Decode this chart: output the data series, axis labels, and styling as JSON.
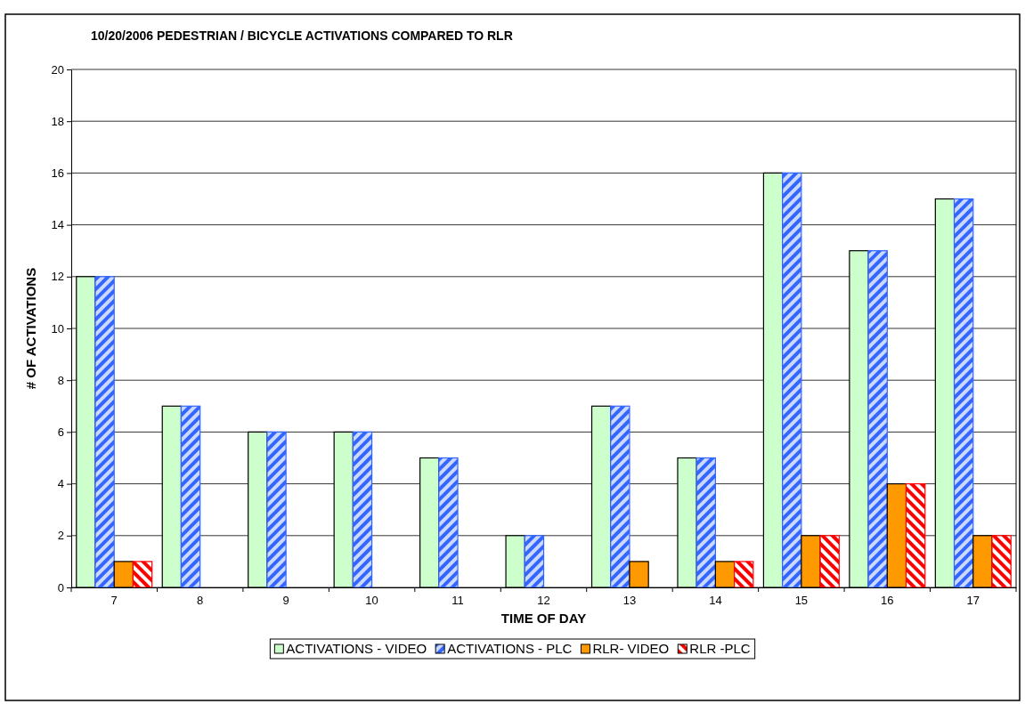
{
  "chart_data": {
    "type": "bar",
    "title": "10/20/2006 PEDESTRIAN / BICYCLE ACTIVATIONS  COMPARED TO RLR",
    "xlabel": "TIME OF DAY",
    "ylabel": "# OF ACTIVATIONS",
    "categories": [
      "7",
      "8",
      "9",
      "10",
      "11",
      "12",
      "13",
      "14",
      "15",
      "16",
      "17"
    ],
    "series": [
      {
        "name": "ACTIVATIONS - VIDEO",
        "color": "#ccffcc",
        "values": [
          12,
          7,
          6,
          6,
          5,
          2,
          7,
          5,
          16,
          13,
          15
        ]
      },
      {
        "name": "ACTIVATIONS - PLC",
        "color": "#3366ff",
        "values": [
          12,
          7,
          6,
          6,
          5,
          2,
          7,
          5,
          16,
          13,
          15
        ]
      },
      {
        "name": "RLR- VIDEO",
        "color": "#ff9900",
        "values": [
          1,
          0,
          0,
          0,
          0,
          0,
          1,
          1,
          2,
          4,
          2
        ]
      },
      {
        "name": "RLR -PLC",
        "color": "#ff0000",
        "values": [
          1,
          0,
          0,
          0,
          0,
          0,
          0,
          1,
          2,
          4,
          2
        ]
      }
    ],
    "ylim": [
      0,
      20
    ],
    "yticks": [
      0,
      2,
      4,
      6,
      8,
      10,
      12,
      14,
      16,
      18,
      20
    ],
    "grid": "y",
    "legend": "bottom"
  }
}
